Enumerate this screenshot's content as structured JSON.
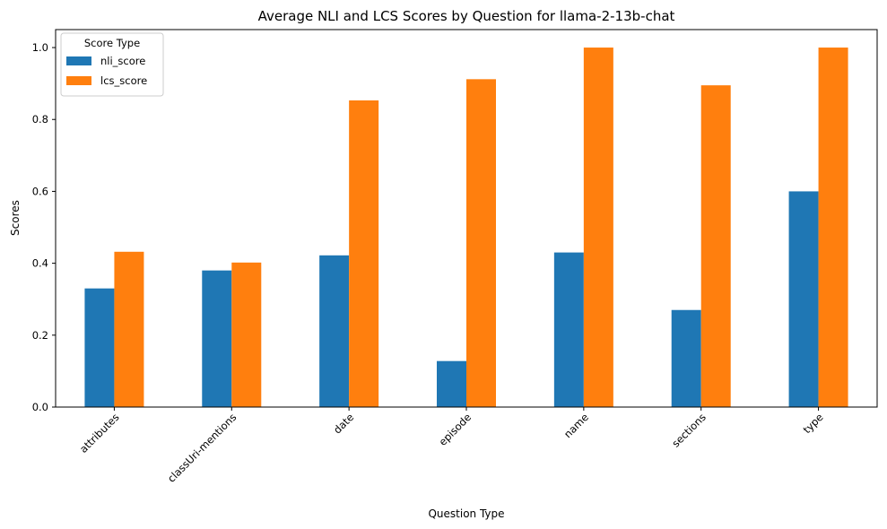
{
  "chart_data": {
    "type": "bar",
    "title": "Average NLI and LCS Scores by Question for llama-2-13b-chat",
    "xlabel": "Question Type",
    "ylabel": "Scores",
    "categories": [
      "attributes",
      "classUri-mentions",
      "date",
      "episode",
      "name",
      "sections",
      "type"
    ],
    "series": [
      {
        "name": "nli_score",
        "values": [
          0.33,
          0.38,
          0.422,
          0.128,
          0.43,
          0.27,
          0.6
        ],
        "color": "#1f77b4"
      },
      {
        "name": "lcs_score",
        "values": [
          0.432,
          0.402,
          0.853,
          0.912,
          1.0,
          0.895,
          1.0
        ],
        "color": "#ff7f0e"
      }
    ],
    "ylim": [
      0,
      1.05
    ],
    "yticks": [
      "0.0",
      "0.2",
      "0.4",
      "0.6",
      "0.8",
      "1.0"
    ],
    "legend": {
      "title": "Score Type",
      "placement": "upper-left"
    },
    "grid": false
  }
}
